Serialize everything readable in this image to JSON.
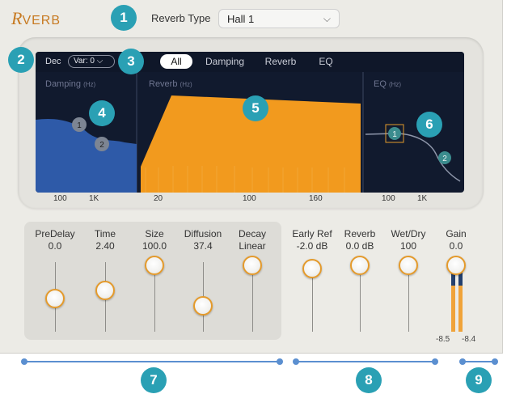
{
  "header": {
    "logo_r": "R",
    "logo_rest": "VERB",
    "reverb_type_label": "Reverb Type",
    "reverb_type_value": "Hall 1",
    "chevron_icon": "chevron-down-icon"
  },
  "display": {
    "dec_label": "Dec",
    "var_value": "Var: 0",
    "tabs": [
      {
        "label": "All",
        "active": true
      },
      {
        "label": "Damping",
        "active": false
      },
      {
        "label": "Reverb",
        "active": false
      },
      {
        "label": "EQ",
        "active": false
      }
    ],
    "sections": {
      "damping": {
        "title": "Damping",
        "unit": "(Hz)",
        "ticks": [
          "100",
          "1K"
        ]
      },
      "reverb": {
        "title": "Reverb",
        "unit": "(Hz)",
        "ticks": [
          "20",
          "100",
          "160"
        ]
      },
      "eq": {
        "title": "EQ",
        "unit": "(Hz)",
        "ticks": [
          "100",
          "1K"
        ]
      }
    },
    "node_labels": [
      "1",
      "2",
      "1",
      "2"
    ]
  },
  "params": [
    {
      "label": "PreDelay",
      "value": "0.0",
      "level": 0.35
    },
    {
      "label": "Time",
      "value": "2.40",
      "level": 0.4
    },
    {
      "label": "Size",
      "value": "100.0",
      "level": 0.95
    },
    {
      "label": "Diffusion",
      "value": "37.4",
      "level": 0.25
    },
    {
      "label": "Decay",
      "value": "Linear",
      "level": 0.95
    },
    {
      "label": "Early Ref",
      "value": "-2.0 dB",
      "level": 0.9
    },
    {
      "label": "Reverb",
      "value": "0.0 dB",
      "level": 0.95
    },
    {
      "label": "Wet/Dry",
      "value": "100",
      "level": 0.95
    },
    {
      "label": "Gain",
      "value": "0.0",
      "level": 0.95
    }
  ],
  "meters": {
    "left": "-8.5",
    "right": "-8.4"
  },
  "callouts": [
    "1",
    "2",
    "3",
    "4",
    "5",
    "6",
    "7",
    "8",
    "9"
  ],
  "colors": {
    "accent": "#e49a2b",
    "callout": "#2aa0b4",
    "display": "#111a2e",
    "curve": "#2e5aa8",
    "envelope": "#f29a1e"
  }
}
